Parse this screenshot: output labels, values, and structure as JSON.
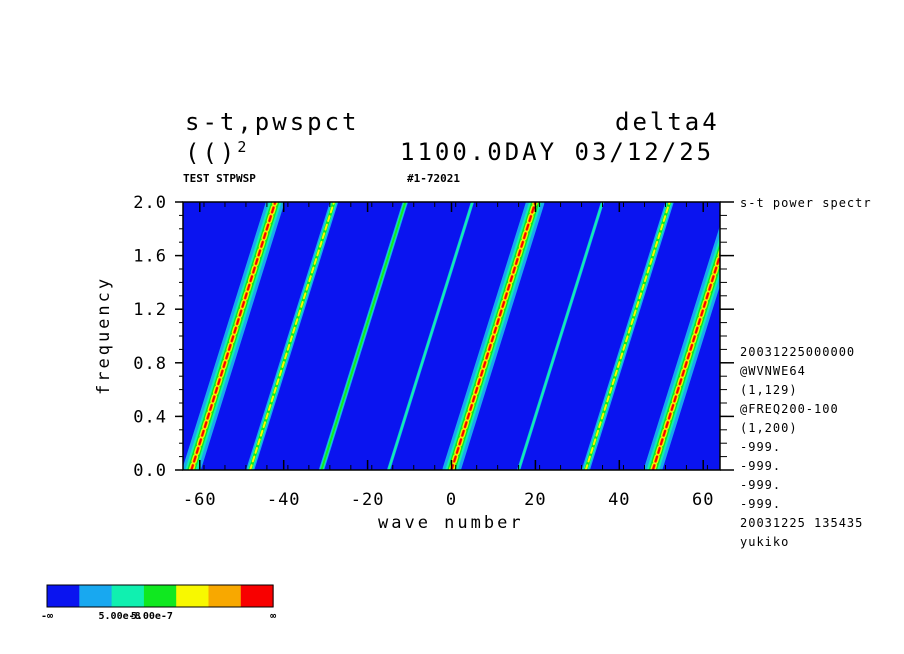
{
  "header": {
    "title_left": "s-t,pwspct",
    "title_right": "delta4",
    "subtitle_left": "(()",
    "subtitle_superscript": "2",
    "subtitle_right": "1100.0DAY 03/12/25",
    "label_left": "TEST STPWSP",
    "label_mid": "#1-72021"
  },
  "side_info": {
    "top_label": "s-t power spectr",
    "lines": [
      "20031225000000",
      "@WVNWE64",
      "(1,129)",
      "@FREQ200-100",
      "(1,200)",
      "-999.",
      "-999.",
      "-999.",
      "-999.",
      "20031225 135435",
      "yukiko"
    ]
  },
  "colorbar": {
    "colors": [
      "#0a14f0",
      "#18a8f0",
      "#10f0b0",
      "#10e820",
      "#f8f800",
      "#f8a800",
      "#f80000"
    ],
    "labels": [
      "-∞",
      "5.00e-8",
      "5.00e-7",
      "∞"
    ]
  },
  "chart_data": {
    "type": "heatmap",
    "title": "s-t,pwspct",
    "xlabel": "wave number",
    "ylabel": "frequency",
    "xlim": [
      -64,
      64
    ],
    "ylim": [
      0.0,
      2.0
    ],
    "x_ticks": [
      -60,
      -40,
      -20,
      0,
      20,
      40,
      60
    ],
    "y_ticks": [
      0.0,
      0.4,
      0.8,
      1.2,
      1.6,
      2.0
    ],
    "background_color": "#0a14f0",
    "ridges": [
      {
        "k0": -62,
        "slope": 0.1,
        "level": 6
      },
      {
        "k0": -48,
        "slope": 0.1,
        "level": 4
      },
      {
        "k0": -31,
        "slope": 0.1,
        "level": 3
      },
      {
        "k0": -15,
        "slope": 0.1,
        "level": 2
      },
      {
        "k0": 0,
        "slope": 0.1,
        "level": 1
      },
      {
        "k0": 0,
        "slope": 0.1,
        "level": 6
      },
      {
        "k0": 16,
        "slope": 0.1,
        "level": 2
      },
      {
        "k0": 32,
        "slope": 0.1,
        "level": 4
      },
      {
        "k0": 48,
        "slope": 0.1,
        "level": 6
      }
    ]
  }
}
